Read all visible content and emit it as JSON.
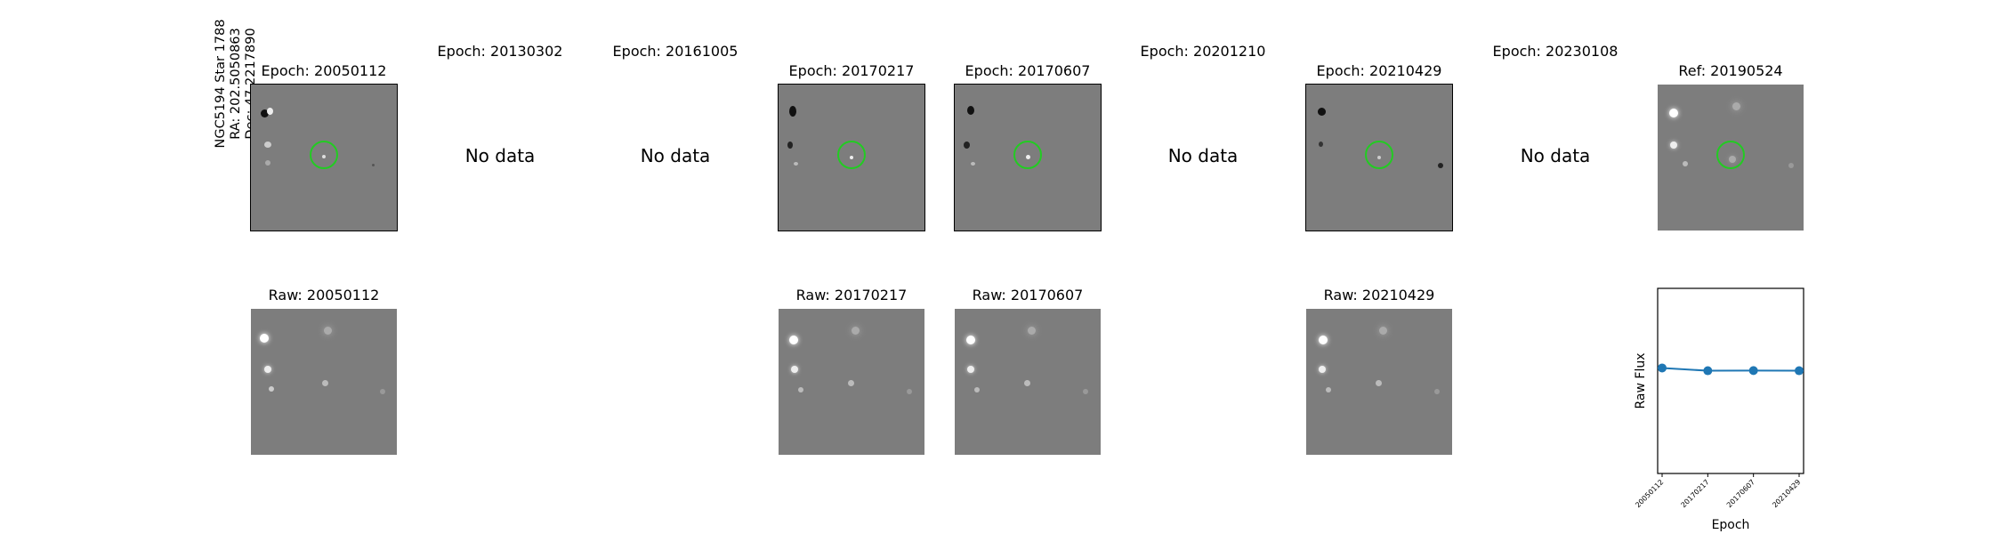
{
  "target": {
    "line1": "NGC5194 Star 1788",
    "line2": "RA: 202.5050863",
    "line3": "Dec: 47.2217890"
  },
  "epochs": [
    {
      "title": "Epoch: 20050112",
      "has_data": true,
      "raw_title": "Raw: 20050112"
    },
    {
      "title": "Epoch: 20130302",
      "has_data": false,
      "nodata": "No data"
    },
    {
      "title": "Epoch: 20161005",
      "has_data": false,
      "nodata": "No data"
    },
    {
      "title": "Epoch: 20170217",
      "has_data": true,
      "raw_title": "Raw: 20170217"
    },
    {
      "title": "Epoch: 20170607",
      "has_data": true,
      "raw_title": "Raw: 20170607"
    },
    {
      "title": "Epoch: 20201210",
      "has_data": false,
      "nodata": "No data"
    },
    {
      "title": "Epoch: 20210429",
      "has_data": true,
      "raw_title": "Raw: 20210429"
    },
    {
      "title": "Epoch: 20230108",
      "has_data": false,
      "nodata": "No data"
    }
  ],
  "reference": {
    "title": "Ref: 20190524"
  },
  "colors": {
    "marker_circle": "#22cc22",
    "series": "#1f77b4"
  },
  "chart_data": {
    "type": "line",
    "x": [
      "20050112",
      "20170217",
      "20170607",
      "20210429"
    ],
    "series": [
      {
        "values": [
          0.57,
          0.555,
          0.556,
          0.555
        ]
      }
    ],
    "xlabel": "Epoch",
    "ylabel": "Raw Flux",
    "ylim": [
      0,
      1
    ],
    "grid": false
  }
}
